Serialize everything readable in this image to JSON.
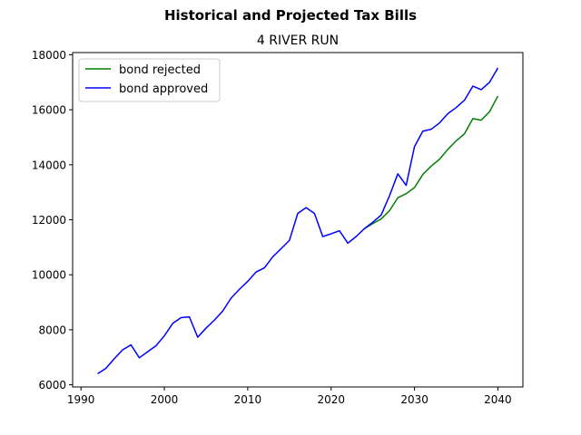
{
  "chart_data": {
    "type": "line",
    "suptitle": "Historical and Projected Tax Bills",
    "title": "4 RIVER RUN",
    "xlabel": "",
    "ylabel": "",
    "xlim": [
      1989,
      2043
    ],
    "ylim": [
      5920,
      18080
    ],
    "xticks": [
      1990,
      2000,
      2010,
      2020,
      2030,
      2040
    ],
    "yticks": [
      6000,
      8000,
      10000,
      12000,
      14000,
      16000,
      18000
    ],
    "grid": false,
    "legend_position": "upper-left",
    "series": [
      {
        "name": "bond rejected",
        "color": "#008000",
        "x": [
          2024,
          2025,
          2026,
          2027,
          2028,
          2029,
          2030,
          2031,
          2032,
          2033,
          2034,
          2035,
          2036,
          2037,
          2038,
          2039,
          2040
        ],
        "values": [
          11680,
          11860,
          12030,
          12330,
          12800,
          12950,
          13170,
          13650,
          13950,
          14200,
          14560,
          14870,
          15130,
          15680,
          15620,
          15930,
          16500
        ]
      },
      {
        "name": "bond approved",
        "color": "#0000ff",
        "x": [
          1992,
          1993,
          1994,
          1995,
          1996,
          1997,
          1998,
          1999,
          2000,
          2001,
          2002,
          2003,
          2004,
          2005,
          2006,
          2007,
          2008,
          2009,
          2010,
          2011,
          2012,
          2013,
          2014,
          2015,
          2016,
          2017,
          2018,
          2019,
          2020,
          2021,
          2022,
          2023,
          2024,
          2025,
          2026,
          2027,
          2028,
          2029,
          2030,
          2031,
          2032,
          2033,
          2034,
          2035,
          2036,
          2037,
          2038,
          2039,
          2040
        ],
        "values": [
          6400,
          6600,
          6950,
          7270,
          7450,
          6980,
          7200,
          7420,
          7780,
          8230,
          8440,
          8470,
          7730,
          8060,
          8350,
          8680,
          9150,
          9470,
          9760,
          10100,
          10250,
          10650,
          10950,
          11250,
          12230,
          12440,
          12230,
          11390,
          11490,
          11600,
          11150,
          11390,
          11680,
          11910,
          12170,
          12870,
          13670,
          13250,
          14660,
          15220,
          15290,
          15520,
          15860,
          16080,
          16350,
          16860,
          16730,
          17000,
          17520
        ]
      }
    ]
  }
}
